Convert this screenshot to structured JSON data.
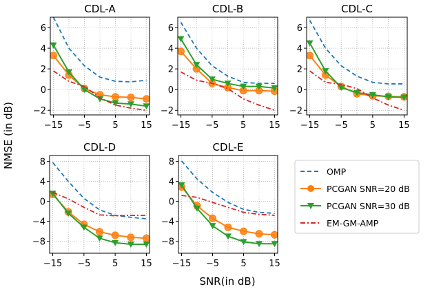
{
  "chart_data": {
    "type": "line",
    "xlabel": "SNR(in dB)",
    "ylabel": "NMSE (in dB)",
    "grid": true,
    "legend_placement": "right of bottom row",
    "series_names": [
      "OMP",
      "PCGAN SNR=20 dB",
      "PCGAN SNR=30 dB",
      "EM-GM-AMP"
    ],
    "series_colors": [
      "#1f77b4",
      "#ff7f0e",
      "#2ca02c",
      "#d62728"
    ],
    "series_styles": [
      "dashed",
      "solid-circle-markers",
      "solid-down-triangle-markers",
      "dash-dot"
    ],
    "x": [
      -15,
      -10,
      -5,
      0,
      5,
      10,
      15
    ],
    "xticks": [
      -15,
      -5,
      5,
      15
    ],
    "xlim": [
      -16,
      16
    ],
    "panels": [
      {
        "title": "CDL-A",
        "ylim": [
          -2.45,
          7
        ],
        "yticks": [
          -2,
          0,
          2,
          4,
          6
        ],
        "series": [
          {
            "name": "OMP",
            "values": [
              7.0,
              4.0,
              2.3,
              1.2,
              0.8,
              0.75,
              0.9
            ]
          },
          {
            "name": "PCGAN SNR=20 dB",
            "values": [
              3.3,
              1.4,
              0.1,
              -0.5,
              -0.7,
              -0.75,
              -0.9
            ]
          },
          {
            "name": "PCGAN SNR=30 dB",
            "values": [
              4.3,
              1.7,
              0.0,
              -0.9,
              -1.3,
              -1.4,
              -1.6
            ]
          },
          {
            "name": "EM-GM-AMP",
            "values": [
              1.8,
              0.8,
              0.3,
              -0.8,
              -1.5,
              -1.8,
              -2.0
            ]
          }
        ]
      },
      {
        "title": "CDL-B",
        "ylim": [
          -2.45,
          7
        ],
        "yticks": [
          -2,
          0,
          2,
          4,
          6
        ],
        "series": [
          {
            "name": "OMP",
            "values": [
              6.5,
              4.0,
              2.3,
              1.3,
              0.7,
              0.6,
              0.6
            ]
          },
          {
            "name": "PCGAN SNR=20 dB",
            "values": [
              3.7,
              2.0,
              0.6,
              0.2,
              -0.1,
              -0.1,
              -0.15
            ]
          },
          {
            "name": "PCGAN SNR=30 dB",
            "values": [
              4.9,
              2.4,
              1.0,
              0.6,
              0.3,
              0.3,
              0.15
            ]
          },
          {
            "name": "EM-GM-AMP",
            "values": [
              1.7,
              0.9,
              0.6,
              0.1,
              -0.9,
              -1.5,
              -2.0
            ]
          }
        ]
      },
      {
        "title": "CDL-C",
        "ylim": [
          -2.45,
          7
        ],
        "yticks": [
          -2,
          0,
          2,
          4,
          6
        ],
        "series": [
          {
            "name": "OMP",
            "values": [
              6.7,
              4.0,
              2.3,
              1.3,
              0.7,
              0.55,
              0.55
            ]
          },
          {
            "name": "PCGAN SNR=20 dB",
            "values": [
              3.3,
              1.4,
              0.3,
              -0.4,
              -0.6,
              -0.65,
              -0.7
            ]
          },
          {
            "name": "PCGAN SNR=30 dB",
            "values": [
              4.5,
              1.8,
              0.2,
              -0.3,
              -0.5,
              -0.7,
              -0.75
            ]
          },
          {
            "name": "EM-GM-AMP",
            "values": [
              1.8,
              0.7,
              0.5,
              0.1,
              -0.8,
              -1.5,
              -2.0
            ]
          }
        ]
      },
      {
        "title": "CDL-D",
        "ylim": [
          -10.4,
          9.2
        ],
        "yticks": [
          -8,
          -4,
          0,
          4,
          8
        ],
        "series": [
          {
            "name": "OMP",
            "values": [
              7.8,
              4.0,
              0.6,
              -1.7,
              -2.8,
              -3.2,
              -3.5
            ]
          },
          {
            "name": "PCGAN SNR=20 dB",
            "values": [
              1.4,
              -2.1,
              -4.6,
              -6.1,
              -6.8,
              -7.2,
              -7.4
            ]
          },
          {
            "name": "PCGAN SNR=30 dB",
            "values": [
              1.6,
              -2.4,
              -5.2,
              -7.4,
              -8.3,
              -8.6,
              -8.6
            ]
          },
          {
            "name": "EM-GM-AMP",
            "values": [
              1.8,
              0.5,
              -1.2,
              -2.7,
              -2.9,
              -2.8,
              -2.8
            ]
          }
        ]
      },
      {
        "title": "CDL-E",
        "ylim": [
          -10.4,
          9.2
        ],
        "yticks": [
          -8,
          -4,
          0,
          4,
          8
        ],
        "series": [
          {
            "name": "OMP",
            "values": [
              8.1,
              4.5,
              1.8,
              -0.2,
              -1.6,
              -2.2,
              -2.4
            ]
          },
          {
            "name": "PCGAN SNR=20 dB",
            "values": [
              2.9,
              -0.9,
              -3.4,
              -5.2,
              -6.0,
              -6.5,
              -6.7
            ]
          },
          {
            "name": "PCGAN SNR=30 dB",
            "values": [
              3.3,
              -1.4,
              -4.9,
              -7.0,
              -8.1,
              -8.5,
              -8.5
            ]
          },
          {
            "name": "EM-GM-AMP",
            "values": [
              1.2,
              0.8,
              -0.2,
              -1.2,
              -2.2,
              -2.6,
              -2.8
            ]
          }
        ]
      }
    ]
  }
}
